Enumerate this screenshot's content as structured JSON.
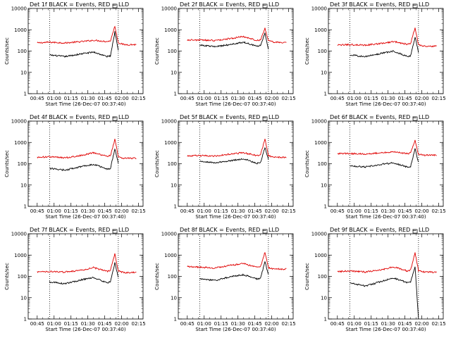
{
  "colors": {
    "events": "#000000",
    "lld": "#e00000",
    "frame": "#000000"
  },
  "chart_data": [
    {
      "type": "line",
      "title": "Det 1f BLACK = Events, RED = LLD",
      "xlabel": "Start Time (26-Dec-07 00:37:40)",
      "ylabel": "Counts/sec",
      "y_scale": "log",
      "ylim": [
        1,
        10000
      ],
      "x_tick_labels": [
        "00:45",
        "01:00",
        "01:15",
        "01:30",
        "01:45",
        "02:00",
        "02:15"
      ],
      "y_tick_labels": [
        "1",
        "10",
        "100",
        "1000",
        "10000"
      ],
      "x": [
        "00:45",
        "00:56",
        "01:10",
        "01:25",
        "01:35",
        "01:47",
        "01:50",
        "01:54",
        "01:57",
        "02:02",
        "02:13"
      ],
      "series": [
        {
          "name": "RED = LLD",
          "values": [
            240,
            260,
            240,
            280,
            320,
            280,
            300,
            1500,
            250,
            200,
            200
          ]
        },
        {
          "name": "BLACK = Events",
          "values": [
            null,
            65,
            55,
            75,
            90,
            55,
            60,
            800,
            120,
            null,
            null
          ]
        }
      ]
    },
    {
      "type": "line",
      "title": "Det 2f BLACK = Events, RED = LLD",
      "xlabel": "Start Time (26-Dec-07 00:37:40)",
      "ylabel": "Counts/sec",
      "y_scale": "log",
      "ylim": [
        1,
        10000
      ],
      "x_tick_labels": [
        "00:45",
        "01:00",
        "01:15",
        "01:30",
        "01:45",
        "02:00",
        "02:15"
      ],
      "y_tick_labels": [
        "1",
        "10",
        "100",
        "1000",
        "10000"
      ],
      "x": [
        "00:45",
        "00:56",
        "01:10",
        "01:25",
        "01:35",
        "01:47",
        "01:50",
        "01:54",
        "01:57",
        "02:02",
        "02:13"
      ],
      "series": [
        {
          "name": "RED = LLD",
          "values": [
            330,
            330,
            310,
            400,
            480,
            310,
            340,
            1200,
            300,
            260,
            250
          ]
        },
        {
          "name": "BLACK = Events",
          "values": [
            null,
            190,
            160,
            210,
            260,
            170,
            180,
            700,
            130,
            null,
            null
          ]
        }
      ]
    },
    {
      "type": "line",
      "title": "Det 3f BLACK = Events, RED = LLD",
      "xlabel": "Start Time (26-Dec-07 00:37:40)",
      "ylabel": "Counts/sec",
      "y_scale": "log",
      "ylim": [
        1,
        10000
      ],
      "x_tick_labels": [
        "00:45",
        "01:00",
        "01:15",
        "01:30",
        "01:45",
        "02:00",
        "02:15"
      ],
      "y_tick_labels": [
        "1",
        "10",
        "100",
        "1000",
        "10000"
      ],
      "x": [
        "00:45",
        "00:56",
        "01:10",
        "01:25",
        "01:35",
        "01:47",
        "01:50",
        "01:54",
        "01:57",
        "02:02",
        "02:13"
      ],
      "series": [
        {
          "name": "RED = LLD",
          "values": [
            190,
            200,
            190,
            230,
            280,
            210,
            230,
            1300,
            200,
            170,
            170
          ]
        },
        {
          "name": "BLACK = Events",
          "values": [
            null,
            65,
            55,
            80,
            100,
            55,
            60,
            450,
            90,
            null,
            null
          ]
        }
      ]
    },
    {
      "type": "line",
      "title": "Det 4f BLACK = Events, RED = LLD",
      "xlabel": "Start Time (26-Dec-07 00:37:40)",
      "ylabel": "Counts/sec",
      "y_scale": "log",
      "ylim": [
        1,
        10000
      ],
      "x_tick_labels": [
        "00:45",
        "01:00",
        "01:15",
        "01:30",
        "01:45",
        "02:00",
        "02:15"
      ],
      "y_tick_labels": [
        "1",
        "10",
        "100",
        "1000",
        "10000"
      ],
      "x": [
        "00:45",
        "00:56",
        "01:10",
        "01:25",
        "01:35",
        "01:47",
        "01:50",
        "01:54",
        "01:57",
        "02:02",
        "02:13"
      ],
      "series": [
        {
          "name": "RED = LLD",
          "values": [
            200,
            210,
            190,
            250,
            330,
            220,
            240,
            1400,
            220,
            180,
            180
          ]
        },
        {
          "name": "BLACK = Events",
          "values": [
            null,
            60,
            50,
            75,
            95,
            55,
            60,
            500,
            110,
            null,
            null
          ]
        }
      ]
    },
    {
      "type": "line",
      "title": "Det 5f BLACK = Events, RED = LLD",
      "xlabel": "Start Time (26-Dec-07 00:37:40)",
      "ylabel": "Counts/sec",
      "y_scale": "log",
      "ylim": [
        1,
        10000
      ],
      "x_tick_labels": [
        "00:45",
        "01:00",
        "01:15",
        "01:30",
        "01:45",
        "02:00",
        "02:15"
      ],
      "y_tick_labels": [
        "1",
        "10",
        "100",
        "1000",
        "10000"
      ],
      "x": [
        "00:45",
        "00:56",
        "01:10",
        "01:25",
        "01:35",
        "01:47",
        "01:50",
        "01:54",
        "01:57",
        "02:02",
        "02:13"
      ],
      "series": [
        {
          "name": "RED = LLD",
          "values": [
            230,
            240,
            230,
            290,
            330,
            240,
            260,
            1500,
            240,
            200,
            200
          ]
        },
        {
          "name": "BLACK = Events",
          "values": [
            null,
            130,
            110,
            140,
            170,
            105,
            115,
            600,
            160,
            null,
            null
          ]
        }
      ]
    },
    {
      "type": "line",
      "title": "Det 6f BLACK = Events, RED = LLD",
      "xlabel": "Start Time (26-Dec-07 00:37:40)",
      "ylabel": "Counts/sec",
      "y_scale": "log",
      "ylim": [
        1,
        10000
      ],
      "x_tick_labels": [
        "00:45",
        "01:00",
        "01:15",
        "01:30",
        "01:45",
        "02:00",
        "02:15"
      ],
      "y_tick_labels": [
        "1",
        "10",
        "100",
        "1000",
        "10000"
      ],
      "x": [
        "00:45",
        "00:56",
        "01:10",
        "01:25",
        "01:35",
        "01:47",
        "01:50",
        "01:54",
        "01:57",
        "02:02",
        "02:13"
      ],
      "series": [
        {
          "name": "RED = LLD",
          "values": [
            300,
            300,
            290,
            330,
            360,
            300,
            320,
            1200,
            280,
            250,
            250
          ]
        },
        {
          "name": "BLACK = Events",
          "values": [
            null,
            80,
            70,
            95,
            110,
            70,
            75,
            500,
            120,
            null,
            null
          ]
        }
      ]
    },
    {
      "type": "line",
      "title": "Det 7f BLACK = Events, RED = LLD",
      "xlabel": "Start Time (26-Dec-07 00:37:40)",
      "ylabel": "Counts/sec",
      "y_scale": "log",
      "ylim": [
        1,
        10000
      ],
      "x_tick_labels": [
        "00:45",
        "01:00",
        "01:15",
        "01:30",
        "01:45",
        "02:00",
        "02:15"
      ],
      "y_tick_labels": [
        "1",
        "10",
        "100",
        "1000",
        "10000"
      ],
      "x": [
        "00:45",
        "00:56",
        "01:10",
        "01:25",
        "01:35",
        "01:47",
        "01:50",
        "01:54",
        "01:57",
        "02:02",
        "02:13"
      ],
      "series": [
        {
          "name": "RED = LLD",
          "values": [
            160,
            170,
            160,
            200,
            260,
            170,
            190,
            1200,
            180,
            150,
            150
          ]
        },
        {
          "name": "BLACK = Events",
          "values": [
            null,
            55,
            45,
            70,
            90,
            50,
            55,
            450,
            90,
            null,
            null
          ]
        }
      ]
    },
    {
      "type": "line",
      "title": "Det 8f BLACK = Events, RED = LLD",
      "xlabel": "Start Time (26-Dec-07 00:37:40)",
      "ylabel": "Counts/sec",
      "y_scale": "log",
      "ylim": [
        1,
        10000
      ],
      "x_tick_labels": [
        "00:45",
        "01:00",
        "01:15",
        "01:30",
        "01:45",
        "02:00",
        "02:15"
      ],
      "y_tick_labels": [
        "1",
        "10",
        "100",
        "1000",
        "10000"
      ],
      "x": [
        "00:45",
        "00:56",
        "01:10",
        "01:25",
        "01:35",
        "01:47",
        "01:50",
        "01:54",
        "01:57",
        "02:02",
        "02:13"
      ],
      "series": [
        {
          "name": "RED = LLD",
          "values": [
            290,
            270,
            250,
            340,
            400,
            260,
            280,
            1400,
            260,
            220,
            220
          ]
        },
        {
          "name": "BLACK = Events",
          "values": [
            null,
            75,
            65,
            100,
            120,
            75,
            80,
            500,
            120,
            null,
            null
          ]
        }
      ]
    },
    {
      "type": "line",
      "title": "Det 9f BLACK = Events, RED = LLD",
      "xlabel": "Start Time (26-Dec-07 00:37:40)",
      "ylabel": "Counts/sec",
      "y_scale": "log",
      "ylim": [
        1,
        10000
      ],
      "x_tick_labels": [
        "00:45",
        "01:00",
        "01:15",
        "01:30",
        "01:45",
        "02:00",
        "02:15"
      ],
      "y_tick_labels": [
        "1",
        "10",
        "100",
        "1000",
        "10000"
      ],
      "x": [
        "00:45",
        "00:56",
        "01:10",
        "01:25",
        "01:35",
        "01:47",
        "01:50",
        "01:54",
        "01:57",
        "02:02",
        "02:13"
      ],
      "series": [
        {
          "name": "RED = LLD",
          "values": [
            170,
            180,
            160,
            210,
            280,
            180,
            200,
            1300,
            190,
            160,
            160
          ]
        },
        {
          "name": "BLACK = Events",
          "values": [
            null,
            50,
            35,
            60,
            85,
            50,
            55,
            300,
            1,
            null,
            null
          ]
        }
      ]
    }
  ]
}
